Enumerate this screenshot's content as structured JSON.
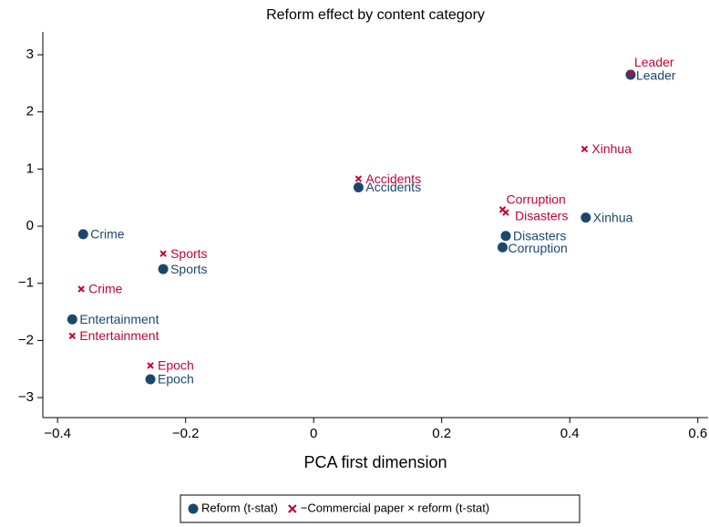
{
  "chart_data": {
    "type": "scatter",
    "title": "Reform effect by content category",
    "xlabel": "PCA first dimension",
    "xlim": [
      -0.423,
      0.616
    ],
    "ylim": [
      -3.35,
      3.4
    ],
    "xticks": [
      {
        "value": -0.4,
        "label": "−0.4"
      },
      {
        "value": -0.2,
        "label": "−0.2"
      },
      0,
      0.2,
      0.4,
      0.6
    ],
    "yticks": [
      3,
      2,
      1,
      0,
      {
        "value": -1,
        "label": "−1"
      },
      {
        "value": -2,
        "label": "−2"
      },
      {
        "value": -3,
        "label": "−3"
      }
    ],
    "legend": "bottom",
    "series": [
      {
        "name": "Reform (t-stat)",
        "color": "#1a476f",
        "marker": "circle",
        "labels": [
          "Leader",
          "Xinhua",
          "Accidents",
          "Disasters",
          "Corruption",
          "Crime",
          "Sports",
          "Entertainment",
          "Epoch"
        ],
        "x": [
          0.495,
          0.425,
          0.07,
          0.3,
          0.295,
          -0.36,
          -0.235,
          -0.377,
          -0.255
        ],
        "values": [
          2.65,
          0.15,
          0.68,
          -0.17,
          -0.37,
          -0.14,
          -0.75,
          -1.63,
          -2.68
        ]
      },
      {
        "name": "−Commercial paper × reform (t-stat)",
        "color": "#c10534",
        "marker": "x",
        "labels": [
          "Leader",
          "Xinhua",
          "Accidents",
          "Corruption",
          "Disasters",
          "Sports",
          "Crime",
          "Entertainment",
          "Epoch"
        ],
        "x": [
          0.495,
          0.423,
          0.07,
          0.295,
          0.3,
          -0.235,
          -0.363,
          -0.377,
          -0.255
        ],
        "values": [
          2.68,
          1.35,
          0.83,
          0.29,
          0.24,
          -0.48,
          -1.1,
          -1.92,
          -2.44
        ]
      }
    ]
  }
}
